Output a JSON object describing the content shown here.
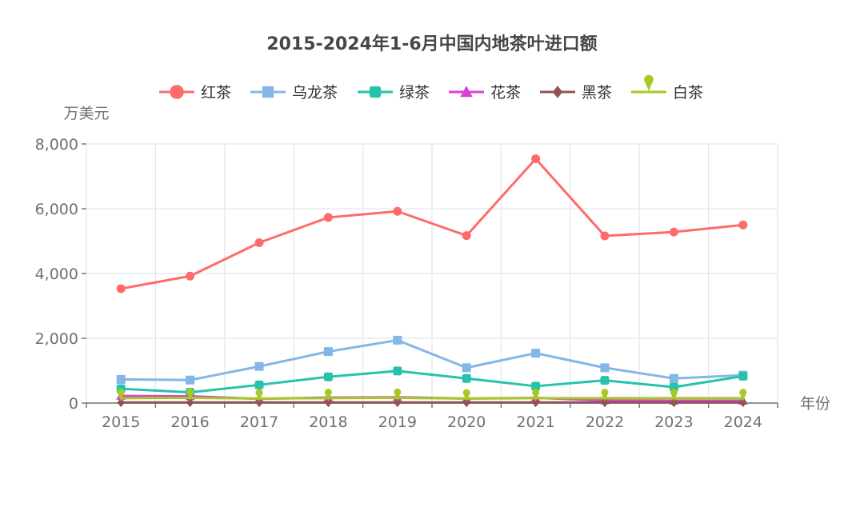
{
  "chart_data": {
    "type": "line",
    "title": "2015-2024年1-6月中国内地茶叶进口额",
    "xlabel": "年份",
    "ylabel": "万美元",
    "categories": [
      "2015",
      "2016",
      "2017",
      "2018",
      "2019",
      "2020",
      "2021",
      "2022",
      "2023",
      "2024"
    ],
    "ylim": [
      0,
      8000
    ],
    "yticks": [
      0,
      2000,
      4000,
      6000,
      8000
    ],
    "ytick_labels": [
      "0",
      "2,000",
      "4,000",
      "6,000",
      "8,000"
    ],
    "grid": true,
    "legend_position": "top-center",
    "series": [
      {
        "name": "红茶",
        "color": "#ff6b6b",
        "marker": "circle",
        "values": [
          3530,
          3920,
          4950,
          5730,
          5920,
          5170,
          7540,
          5160,
          5280,
          5500
        ]
      },
      {
        "name": "乌龙茶",
        "color": "#85b6e8",
        "marker": "square",
        "values": [
          730,
          710,
          1130,
          1590,
          1940,
          1090,
          1540,
          1090,
          760,
          860
        ]
      },
      {
        "name": "绿茶",
        "color": "#26c3aa",
        "marker": "roundRect",
        "values": [
          440,
          330,
          560,
          810,
          990,
          760,
          520,
          700,
          490,
          830
        ]
      },
      {
        "name": "花茶",
        "color": "#d742d7",
        "marker": "triangle",
        "values": [
          220,
          210,
          130,
          170,
          180,
          140,
          160,
          80,
          70,
          70
        ]
      },
      {
        "name": "黑茶",
        "color": "#8f5451",
        "marker": "diamond",
        "values": [
          20,
          20,
          20,
          20,
          20,
          20,
          20,
          20,
          20,
          20
        ]
      },
      {
        "name": "白茶",
        "color": "#a6c924",
        "marker": "pin",
        "values": [
          150,
          160,
          140,
          150,
          160,
          140,
          150,
          150,
          150,
          150
        ]
      }
    ]
  }
}
